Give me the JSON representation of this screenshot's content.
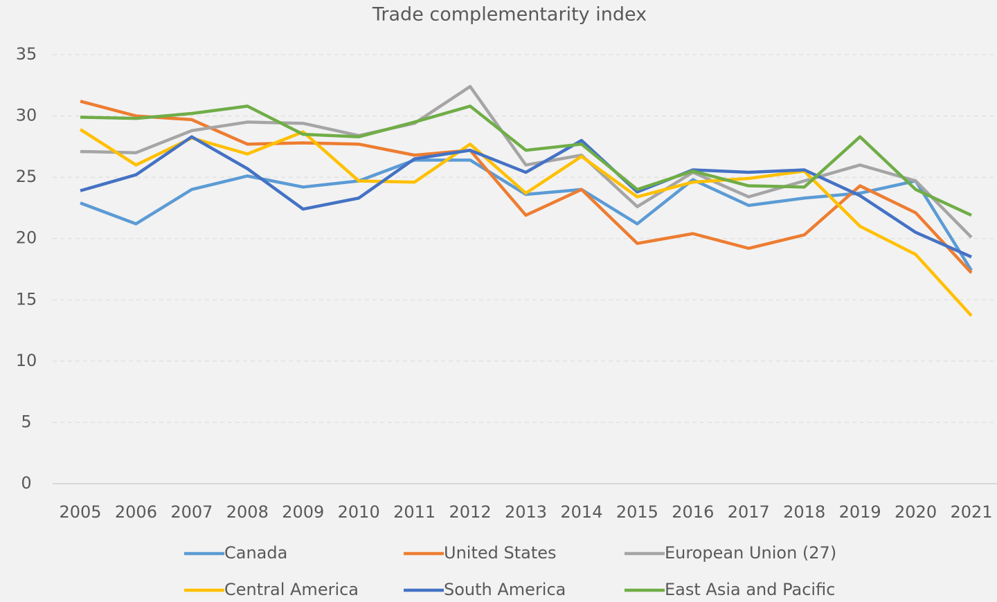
{
  "chart_data": {
    "type": "line",
    "title": "Trade complementarity index",
    "categories": [
      "2005",
      "2006",
      "2007",
      "2008",
      "2009",
      "2010",
      "2011",
      "2012",
      "2013",
      "2014",
      "2015",
      "2016",
      "2017",
      "2018",
      "2019",
      "2020",
      "2021"
    ],
    "ylim": [
      0,
      35
    ],
    "yticks": [
      0,
      5,
      10,
      15,
      20,
      25,
      30,
      35
    ],
    "grid": true,
    "legend": "bottom",
    "series": [
      {
        "name": "Canada",
        "color": "#5b9bd5",
        "values": [
          22.9,
          21.2,
          24.0,
          25.1,
          24.2,
          24.7,
          26.4,
          26.4,
          23.6,
          24.0,
          21.2,
          24.8,
          22.7,
          23.3,
          23.7,
          24.7,
          17.4
        ]
      },
      {
        "name": "United States",
        "color": "#ed7d31",
        "values": [
          31.2,
          30.0,
          29.7,
          27.7,
          27.8,
          27.7,
          26.8,
          27.2,
          21.9,
          24.0,
          19.6,
          20.4,
          19.2,
          20.3,
          24.3,
          22.1,
          17.2
        ]
      },
      {
        "name": "European Union (27)",
        "color": "#a5a5a5",
        "values": [
          27.1,
          27.0,
          28.8,
          29.5,
          29.4,
          28.4,
          29.4,
          32.4,
          26.0,
          26.8,
          22.6,
          25.4,
          23.4,
          24.7,
          26.0,
          24.7,
          20.1
        ]
      },
      {
        "name": "Central America",
        "color": "#ffc000",
        "values": [
          28.9,
          26.0,
          28.2,
          26.9,
          28.7,
          24.7,
          24.6,
          27.7,
          23.7,
          26.7,
          23.4,
          24.6,
          24.9,
          25.5,
          21.0,
          18.7,
          13.7
        ]
      },
      {
        "name": "South America",
        "color": "#4472c4",
        "values": [
          23.9,
          25.2,
          28.3,
          25.7,
          22.4,
          23.3,
          26.5,
          27.2,
          25.4,
          28.0,
          23.8,
          25.6,
          25.4,
          25.6,
          23.5,
          20.5,
          18.5
        ]
      },
      {
        "name": "East Asia and Pacific",
        "color": "#70ad47",
        "values": [
          29.9,
          29.8,
          30.2,
          30.8,
          28.5,
          28.3,
          29.5,
          30.8,
          27.2,
          27.7,
          24.0,
          25.5,
          24.3,
          24.2,
          28.3,
          24.0,
          21.9
        ]
      }
    ]
  }
}
